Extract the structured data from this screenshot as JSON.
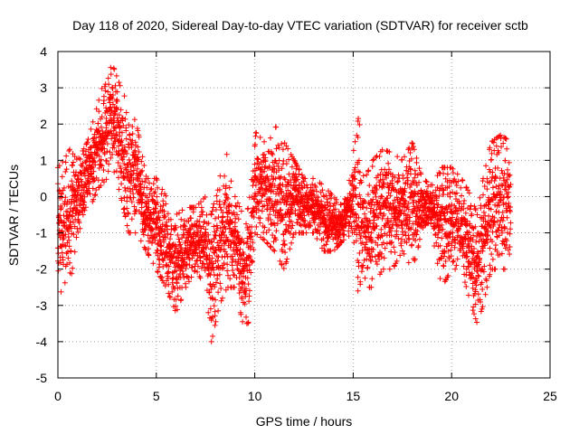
{
  "chart_data": {
    "type": "scatter",
    "title": "Day 118 of 2020, Sidereal Day-to-day VTEC variation (SDTVAR) for receiver sctb",
    "xlabel": "GPS time / hours",
    "ylabel": "SDTVAR / TECUs",
    "xlim": [
      0,
      25
    ],
    "ylim": [
      -5,
      4
    ],
    "x_ticks": [
      0,
      5,
      10,
      15,
      20,
      25
    ],
    "y_ticks": [
      -5,
      -4,
      -3,
      -2,
      -1,
      0,
      1,
      2,
      3,
      4
    ],
    "grid": true,
    "marker": "+",
    "series_color": "#ff0000",
    "series": [
      {
        "name": "SDTVAR",
        "envelope_x": [
          0,
          0.3,
          0.6,
          1.0,
          1.5,
          2.0,
          2.5,
          2.8,
          3.2,
          3.6,
          4.0,
          4.5,
          5.0,
          5.5,
          6.0,
          6.5,
          7.0,
          7.5,
          7.8,
          8.2,
          8.6,
          9.0,
          9.4,
          9.7,
          10.0,
          10.5,
          11.0,
          11.5,
          12.0,
          12.5,
          13.0,
          13.5,
          14.0,
          14.5,
          15.0,
          15.3,
          15.6,
          16.0,
          16.5,
          17.0,
          17.5,
          18.0,
          18.5,
          19.0,
          19.5,
          20.0,
          20.5,
          21.0,
          21.3,
          21.6,
          22.0,
          22.5,
          23.0
        ],
        "envelope_low": [
          -2.2,
          -3.0,
          -2.5,
          -1.0,
          -0.5,
          0.2,
          0.5,
          0.8,
          0.0,
          -1.0,
          -1.0,
          -1.5,
          -2.0,
          -2.5,
          -3.2,
          -2.5,
          -2.0,
          -2.5,
          -4.0,
          -3.0,
          -2.5,
          -2.5,
          -3.5,
          -4.0,
          -1.0,
          -1.2,
          -1.5,
          -2.0,
          -1.0,
          -1.0,
          -1.0,
          -1.5,
          -1.5,
          -1.2,
          -1.0,
          -3.0,
          -2.5,
          -2.5,
          -2.0,
          -2.0,
          -1.5,
          -2.0,
          -1.0,
          -1.0,
          -2.5,
          -2.0,
          -2.0,
          -3.0,
          -3.5,
          -3.0,
          -2.0,
          -2.0,
          -2.0
        ],
        "envelope_high": [
          0.8,
          1.0,
          1.3,
          1.0,
          1.5,
          2.5,
          3.5,
          3.6,
          3.0,
          2.5,
          2.0,
          0.5,
          0.5,
          0.0,
          -0.5,
          -0.3,
          -0.3,
          0.0,
          -0.5,
          0.5,
          1.2,
          0.0,
          -0.5,
          -0.3,
          1.8,
          1.5,
          2.0,
          1.5,
          1.0,
          0.5,
          0.5,
          0.3,
          0.0,
          -0.3,
          1.2,
          2.3,
          0.5,
          1.0,
          1.3,
          1.2,
          1.0,
          1.5,
          0.5,
          0.3,
          0.8,
          0.8,
          0.5,
          0.0,
          -0.5,
          0.5,
          1.5,
          1.7,
          1.5
        ]
      }
    ]
  }
}
